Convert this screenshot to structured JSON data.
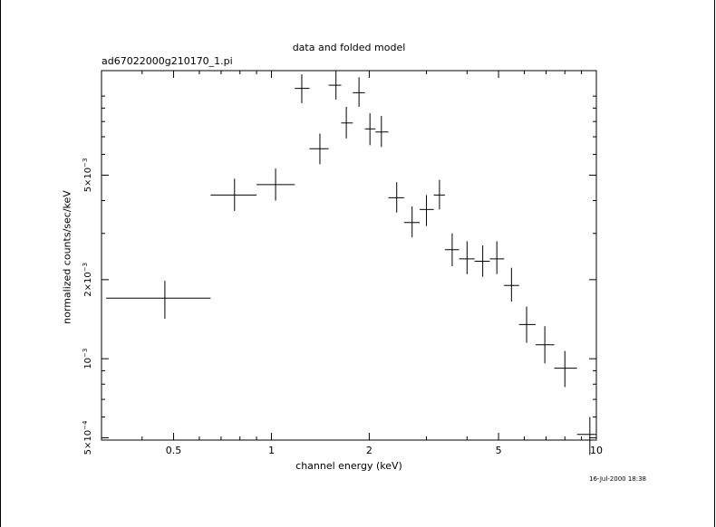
{
  "chart_data": {
    "type": "scatter",
    "title": "data and folded model",
    "subtitle": "ad67022000g210170_1.pi",
    "xlabel": "channel energy (keV)",
    "ylabel": "normalized counts/sec/keV",
    "timestamp": "16-Jul-2000 18:38",
    "x_scale": "log",
    "y_scale": "log",
    "xlim": [
      0.3,
      10
    ],
    "ylim": [
      0.00049,
      0.0125
    ],
    "x_ticks": [
      {
        "value": 0.5,
        "label": "0.5"
      },
      {
        "value": 1,
        "label": "1"
      },
      {
        "value": 2,
        "label": "2"
      },
      {
        "value": 5,
        "label": "5"
      },
      {
        "value": 10,
        "label": "10"
      }
    ],
    "y_ticks": [
      {
        "value": 0.0005,
        "mant": "5×10",
        "exp": "−4"
      },
      {
        "value": 0.001,
        "mant": "10",
        "exp": "−3"
      },
      {
        "value": 0.002,
        "mant": "2×10",
        "exp": "−3"
      },
      {
        "value": 0.005,
        "mant": "5×10",
        "exp": "−3"
      }
    ],
    "points": [
      {
        "x": 0.47,
        "xlo": 0.31,
        "xhi": 0.65,
        "y": 0.0017,
        "ylo": 0.00142,
        "yhi": 0.00198
      },
      {
        "x": 0.77,
        "xlo": 0.65,
        "xhi": 0.9,
        "y": 0.0042,
        "ylo": 0.00365,
        "yhi": 0.00485
      },
      {
        "x": 1.03,
        "xlo": 0.9,
        "xhi": 1.18,
        "y": 0.0046,
        "ylo": 0.004,
        "yhi": 0.0053
      },
      {
        "x": 1.24,
        "xlo": 1.18,
        "xhi": 1.31,
        "y": 0.0107,
        "ylo": 0.0094,
        "yhi": 0.0121
      },
      {
        "x": 1.41,
        "xlo": 1.31,
        "xhi": 1.5,
        "y": 0.0063,
        "ylo": 0.0055,
        "yhi": 0.0072
      },
      {
        "x": 1.58,
        "xlo": 1.5,
        "xhi": 1.64,
        "y": 0.011,
        "ylo": 0.0097,
        "yhi": 0.0125
      },
      {
        "x": 1.7,
        "xlo": 1.64,
        "xhi": 1.78,
        "y": 0.0079,
        "ylo": 0.0069,
        "yhi": 0.0091
      },
      {
        "x": 1.86,
        "xlo": 1.78,
        "xhi": 1.94,
        "y": 0.0103,
        "ylo": 0.0091,
        "yhi": 0.0118
      },
      {
        "x": 2.01,
        "xlo": 1.94,
        "xhi": 2.09,
        "y": 0.0075,
        "ylo": 0.0065,
        "yhi": 0.0086
      },
      {
        "x": 2.18,
        "xlo": 2.09,
        "xhi": 2.29,
        "y": 0.0073,
        "ylo": 0.0064,
        "yhi": 0.0084
      },
      {
        "x": 2.43,
        "xlo": 2.29,
        "xhi": 2.56,
        "y": 0.0041,
        "ylo": 0.0036,
        "yhi": 0.0047
      },
      {
        "x": 2.71,
        "xlo": 2.56,
        "xhi": 2.86,
        "y": 0.0033,
        "ylo": 0.0029,
        "yhi": 0.0038
      },
      {
        "x": 3.0,
        "xlo": 2.86,
        "xhi": 3.16,
        "y": 0.0037,
        "ylo": 0.0032,
        "yhi": 0.0042
      },
      {
        "x": 3.29,
        "xlo": 3.16,
        "xhi": 3.42,
        "y": 0.0042,
        "ylo": 0.0037,
        "yhi": 0.0048
      },
      {
        "x": 3.6,
        "xlo": 3.42,
        "xhi": 3.78,
        "y": 0.0026,
        "ylo": 0.00225,
        "yhi": 0.003
      },
      {
        "x": 4.0,
        "xlo": 3.78,
        "xhi": 4.22,
        "y": 0.0024,
        "ylo": 0.0021,
        "yhi": 0.0028
      },
      {
        "x": 4.47,
        "xlo": 4.22,
        "xhi": 4.7,
        "y": 0.00235,
        "ylo": 0.00205,
        "yhi": 0.0027
      },
      {
        "x": 4.94,
        "xlo": 4.7,
        "xhi": 5.2,
        "y": 0.0024,
        "ylo": 0.0021,
        "yhi": 0.0028
      },
      {
        "x": 5.48,
        "xlo": 5.2,
        "xhi": 5.78,
        "y": 0.0019,
        "ylo": 0.00165,
        "yhi": 0.00222
      },
      {
        "x": 6.1,
        "xlo": 5.78,
        "xhi": 6.5,
        "y": 0.00135,
        "ylo": 0.00115,
        "yhi": 0.00158
      },
      {
        "x": 6.94,
        "xlo": 6.5,
        "xhi": 7.42,
        "y": 0.00113,
        "ylo": 0.00096,
        "yhi": 0.00133
      },
      {
        "x": 8.0,
        "xlo": 7.42,
        "xhi": 8.72,
        "y": 0.00092,
        "ylo": 0.00078,
        "yhi": 0.00107
      },
      {
        "x": 9.55,
        "xlo": 8.72,
        "xhi": 10.0,
        "y": 0.000515,
        "ylo": 0.00043,
        "yhi": 0.0006
      }
    ]
  }
}
